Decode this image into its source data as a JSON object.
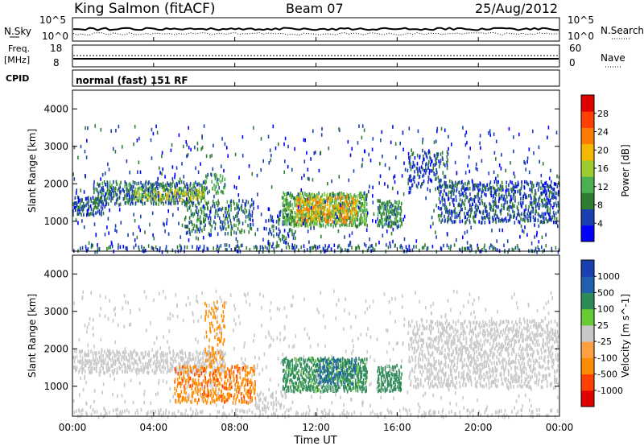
{
  "header": {
    "station": "King Salmon (fitACF)",
    "beam": "Beam 07",
    "date": "25/Aug/2012"
  },
  "summary_panel": {
    "nsky_label": "N.Sky",
    "nsky_axis_ticks": [
      "10^5",
      "10^0"
    ],
    "nsearch_label": "N.Search",
    "nsearch_axis_ticks": [
      "10^5",
      "10^0"
    ],
    "freq_label_line1": "Freq.",
    "freq_label_line2": "[MHz]",
    "freq_ticks": [
      "18",
      "8"
    ],
    "nave_label": "Nave",
    "nave_ticks": [
      "60",
      "0"
    ],
    "cpid_label": "CPID",
    "cpid_value": "normal (fast) 151 RF"
  },
  "x_axis": {
    "label": "Time UT",
    "ticks": [
      "00:00",
      "04:00",
      "08:00",
      "12:00",
      "16:00",
      "20:00",
      "00:00"
    ]
  },
  "chart_data": [
    {
      "type": "heatmap",
      "name": "power_panel",
      "ylabel": "Slant Range [km]",
      "y_ticks": [
        1000,
        2000,
        3000,
        4000
      ],
      "ylim": [
        200,
        4500
      ],
      "xlim_hours": [
        0,
        24
      ],
      "colorbar": {
        "label": "Power [dB]",
        "ticks": [
          "28",
          "24",
          "20",
          "16",
          "12",
          "8",
          "4"
        ],
        "colors": [
          "#0000ff",
          "#1a3fb0",
          "#2e7d32",
          "#4caf50",
          "#9ccc2f",
          "#f5b800",
          "#ff7a00",
          "#ff4000",
          "#e00000"
        ]
      },
      "regions": [
        {
          "t0": 0.0,
          "t1": 24.0,
          "r0": 200,
          "r1": 420,
          "power": 6,
          "density": 0.45
        },
        {
          "t0": 0.0,
          "t1": 1.5,
          "r0": 1200,
          "r1": 1700,
          "power": 6,
          "density": 0.7
        },
        {
          "t0": 1.0,
          "t1": 6.5,
          "r0": 1500,
          "r1": 2100,
          "power": 8,
          "density": 0.75
        },
        {
          "t0": 3.0,
          "t1": 6.5,
          "r0": 1600,
          "r1": 1900,
          "power": 17,
          "density": 0.6
        },
        {
          "t0": 5.5,
          "t1": 9.0,
          "r0": 700,
          "r1": 1600,
          "power": 8,
          "density": 0.45
        },
        {
          "t0": 6.5,
          "t1": 7.5,
          "r0": 1800,
          "r1": 2300,
          "power": 10,
          "density": 0.5
        },
        {
          "t0": 9.5,
          "t1": 11.0,
          "r0": 400,
          "r1": 1200,
          "power": 7,
          "density": 0.35
        },
        {
          "t0": 10.3,
          "t1": 14.5,
          "r0": 900,
          "r1": 1800,
          "power": 12,
          "density": 0.9
        },
        {
          "t0": 11.0,
          "t1": 14.0,
          "r0": 1000,
          "r1": 1700,
          "power": 21,
          "density": 0.6
        },
        {
          "t0": 15.0,
          "t1": 16.2,
          "r0": 900,
          "r1": 1600,
          "power": 10,
          "density": 0.85
        },
        {
          "t0": 16.5,
          "t1": 18.5,
          "r0": 1900,
          "r1": 2900,
          "power": 6,
          "density": 0.4
        },
        {
          "t0": 18.0,
          "t1": 24.0,
          "r0": 1000,
          "r1": 2100,
          "power": 6,
          "density": 0.55
        },
        {
          "t0": 0.0,
          "t1": 24.0,
          "r0": 400,
          "r1": 3600,
          "power": 5,
          "density": 0.04
        }
      ]
    },
    {
      "type": "heatmap",
      "name": "velocity_panel",
      "ylabel": "Slant Range [km]",
      "y_ticks": [
        1000,
        2000,
        3000,
        4000
      ],
      "ylim": [
        200,
        4500
      ],
      "xlim_hours": [
        0,
        24
      ],
      "colorbar": {
        "label": "Velocity [m s^-1]",
        "ticks": [
          "1000",
          "500",
          "100",
          "25",
          "-25",
          "-100",
          "-500",
          "-1000"
        ],
        "colors": [
          "#e00000",
          "#ff4000",
          "#ff8c00",
          "#ffa040",
          "#c8c8c8",
          "#66cc33",
          "#2e8b57",
          "#2060b0",
          "#1a3fb0"
        ]
      },
      "regions": [
        {
          "t0": 0.0,
          "t1": 24.0,
          "r0": 200,
          "r1": 420,
          "velocity": 0,
          "density": 0.35
        },
        {
          "t0": 0.0,
          "t1": 7.5,
          "r0": 1400,
          "r1": 2000,
          "velocity": 0,
          "density": 0.65
        },
        {
          "t0": 5.0,
          "t1": 9.0,
          "r0": 600,
          "r1": 1600,
          "velocity": -400,
          "density": 0.6
        },
        {
          "t0": 6.5,
          "t1": 7.5,
          "r0": 1600,
          "r1": 3300,
          "velocity": -250,
          "density": 0.35
        },
        {
          "t0": 9.0,
          "t1": 10.5,
          "r0": 400,
          "r1": 900,
          "velocity": 0,
          "density": 0.45
        },
        {
          "t0": 10.3,
          "t1": 14.5,
          "r0": 900,
          "r1": 1800,
          "velocity": 150,
          "density": 0.85
        },
        {
          "t0": 12.0,
          "t1": 14.0,
          "r0": 1100,
          "r1": 1800,
          "velocity": 600,
          "density": 0.4
        },
        {
          "t0": 15.0,
          "t1": 16.2,
          "r0": 900,
          "r1": 1600,
          "velocity": 300,
          "density": 0.85
        },
        {
          "t0": 16.5,
          "t1": 24.0,
          "r0": 1000,
          "r1": 2800,
          "velocity": 0,
          "density": 0.45
        },
        {
          "t0": 0.0,
          "t1": 24.0,
          "r0": 400,
          "r1": 3600,
          "velocity": 0,
          "density": 0.04
        }
      ]
    }
  ]
}
